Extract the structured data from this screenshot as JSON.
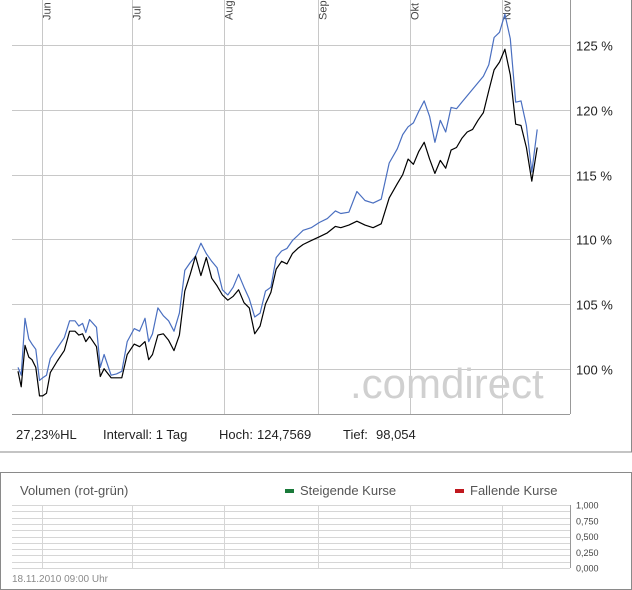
{
  "chart_data": [
    {
      "type": "line",
      "x_tick_labels": [
        "Jun",
        "Jul",
        "Aug",
        "Sep",
        "Okt",
        "Nov"
      ],
      "y_tick_labels": [
        "125 %",
        "120 %",
        "115 %",
        "110 %",
        "105 %",
        "100 %"
      ],
      "y_ticks": [
        125,
        120,
        115,
        110,
        105,
        100
      ],
      "ylim": [
        96.5,
        128.5
      ],
      "grid": true,
      "watermark": ".comdirect",
      "series": [
        {
          "color": "#4a6fc0",
          "values": [
            100.1,
            99.5,
            103.9,
            102.3,
            101.9,
            101.5,
            99.1,
            99.3,
            99.5,
            100.8,
            101.6,
            102.4,
            103.7,
            103.7,
            103.3,
            103.5,
            102.8,
            103.8,
            103.2,
            100.1,
            101.1,
            99.5,
            99.6,
            99.8,
            102.1,
            103.1,
            102.9,
            103.9,
            102.1,
            102.7,
            104.7,
            104.1,
            103.7,
            102.9,
            104.3,
            107.6,
            108.2,
            108.7,
            109.7,
            108.9,
            108.3,
            107.8,
            106.1,
            105.7,
            106.3,
            107.3,
            106.3,
            105.4,
            104.0,
            104.3,
            106.0,
            106.3,
            108.6,
            109.1,
            109.3,
            109.9,
            110.3,
            110.7,
            110.9,
            111.3,
            111.6,
            112.2,
            112.0,
            112.1,
            113.7,
            113.0,
            112.8,
            113.1,
            115.9,
            117.0,
            118.1,
            118.7,
            119.0,
            119.9,
            120.7,
            119.5,
            117.5,
            119.2,
            118.3,
            120.2,
            120.1,
            120.6,
            121.1,
            121.6,
            122.1,
            122.6,
            123.5,
            125.6,
            126.0,
            127.4,
            125.5,
            120.6,
            120.7,
            118.8,
            115.2,
            118.5
          ],
          "x_fractions": [
            0.0,
            0.006,
            0.013,
            0.02,
            0.026,
            0.033,
            0.04,
            0.046,
            0.053,
            0.06,
            0.073,
            0.086,
            0.096,
            0.106,
            0.113,
            0.12,
            0.126,
            0.133,
            0.146,
            0.153,
            0.16,
            0.173,
            0.183,
            0.193,
            0.203,
            0.216,
            0.226,
            0.236,
            0.243,
            0.25,
            0.26,
            0.27,
            0.28,
            0.29,
            0.3,
            0.31,
            0.32,
            0.33,
            0.34,
            0.35,
            0.36,
            0.37,
            0.38,
            0.39,
            0.4,
            0.41,
            0.42,
            0.43,
            0.44,
            0.45,
            0.46,
            0.47,
            0.48,
            0.49,
            0.5,
            0.51,
            0.52,
            0.53,
            0.545,
            0.56,
            0.575,
            0.59,
            0.6,
            0.615,
            0.63,
            0.645,
            0.66,
            0.675,
            0.69,
            0.705,
            0.715,
            0.725,
            0.735,
            0.745,
            0.755,
            0.765,
            0.775,
            0.785,
            0.795,
            0.805,
            0.815,
            0.825,
            0.835,
            0.845,
            0.855,
            0.865,
            0.875,
            0.885,
            0.895,
            0.905,
            0.915,
            0.925,
            0.935,
            0.945,
            0.955,
            0.965
          ]
        },
        {
          "color": "#000000",
          "values": [
            99.8,
            98.6,
            101.8,
            100.9,
            100.7,
            100.1,
            97.9,
            97.9,
            98.1,
            99.7,
            100.6,
            101.4,
            102.9,
            102.9,
            102.6,
            102.7,
            102.1,
            102.5,
            101.7,
            99.4,
            100.0,
            99.3,
            99.3,
            99.3,
            101.1,
            101.9,
            101.7,
            102.1,
            100.7,
            101.1,
            102.6,
            102.7,
            102.2,
            101.4,
            102.6,
            106.0,
            107.3,
            108.7,
            107.2,
            108.6,
            107.0,
            106.4,
            105.7,
            105.3,
            105.6,
            106.1,
            105.1,
            104.7,
            102.7,
            103.3,
            105.0,
            105.9,
            107.7,
            108.3,
            108.1,
            108.9,
            109.3,
            109.6,
            109.9,
            110.2,
            110.5,
            111.0,
            110.9,
            111.1,
            111.4,
            111.1,
            110.9,
            111.2,
            113.2,
            114.3,
            115.0,
            116.2,
            115.8,
            116.8,
            117.5,
            116.2,
            115.1,
            116.1,
            115.5,
            116.9,
            117.1,
            117.8,
            118.3,
            118.5,
            119.2,
            119.8,
            121.5,
            123.1,
            123.7,
            124.7,
            122.7,
            118.9,
            118.8,
            117.1,
            114.5,
            117.1
          ],
          "x_fractions": [
            0.0,
            0.006,
            0.013,
            0.02,
            0.026,
            0.033,
            0.04,
            0.046,
            0.053,
            0.06,
            0.073,
            0.086,
            0.096,
            0.106,
            0.113,
            0.12,
            0.126,
            0.133,
            0.146,
            0.153,
            0.16,
            0.173,
            0.183,
            0.193,
            0.203,
            0.216,
            0.226,
            0.236,
            0.243,
            0.25,
            0.26,
            0.27,
            0.28,
            0.29,
            0.3,
            0.31,
            0.32,
            0.33,
            0.34,
            0.35,
            0.36,
            0.37,
            0.38,
            0.39,
            0.4,
            0.41,
            0.42,
            0.43,
            0.44,
            0.45,
            0.46,
            0.47,
            0.48,
            0.49,
            0.5,
            0.51,
            0.52,
            0.53,
            0.545,
            0.56,
            0.575,
            0.59,
            0.6,
            0.615,
            0.63,
            0.645,
            0.66,
            0.675,
            0.69,
            0.705,
            0.715,
            0.725,
            0.735,
            0.745,
            0.755,
            0.765,
            0.775,
            0.785,
            0.795,
            0.805,
            0.815,
            0.825,
            0.835,
            0.845,
            0.855,
            0.865,
            0.875,
            0.885,
            0.895,
            0.905,
            0.915,
            0.925,
            0.935,
            0.945,
            0.955,
            0.965
          ]
        }
      ],
      "stats": {
        "performance": "27,23%HL",
        "interval": "Intervall: 1 Tag",
        "high_label": "Hoch:",
        "high_value": "124,7569",
        "low_label": "Tief:",
        "low_value": "98,054"
      }
    },
    {
      "type": "bar",
      "title": "Volumen (rot-grün)",
      "legend": [
        {
          "label": "Steigende Kurse",
          "color": "#1a7a3a"
        },
        {
          "label": "Fallende Kurse",
          "color": "#c0181e"
        }
      ],
      "y_tick_labels": [
        "1,000",
        "0,750",
        "0,500",
        "0,250",
        "0,000"
      ],
      "ylim": [
        0,
        1
      ],
      "values": [],
      "grid": true,
      "timestamp": "18.11.2010 09:00 Uhr"
    }
  ]
}
